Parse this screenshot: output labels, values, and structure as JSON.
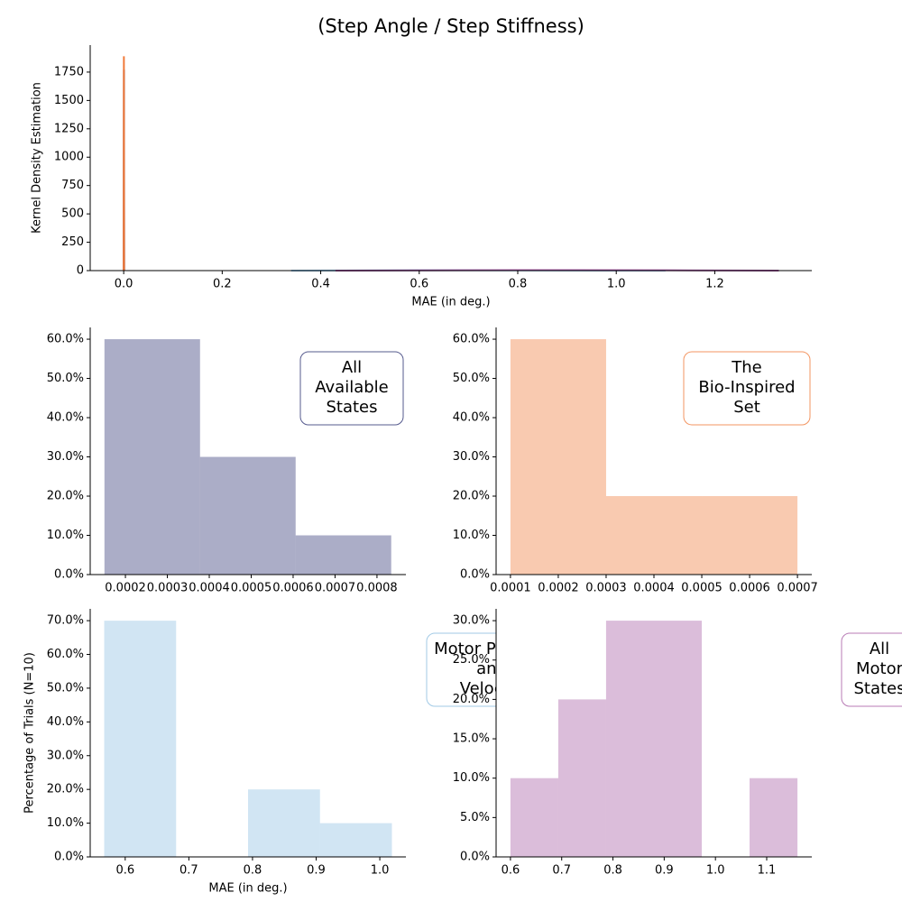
{
  "title": "(Step Angle / Step Stiffness)",
  "chart_data": [
    {
      "type": "line",
      "xlabel": "MAE (in deg.)",
      "ylabel": "Kernel Density Estimation",
      "xlim": [
        -0.068,
        1.397
      ],
      "ylim": [
        0,
        1988
      ],
      "xticks": [
        {
          "value": 0,
          "label": "0.0"
        },
        {
          "value": 0.2,
          "label": "0.2"
        },
        {
          "value": 0.4,
          "label": "0.4"
        },
        {
          "value": 0.6,
          "label": "0.6"
        },
        {
          "value": 0.8,
          "label": "0.8"
        },
        {
          "value": 1.0,
          "label": "1.0"
        },
        {
          "value": 1.2,
          "label": "1.2"
        }
      ],
      "yticks": [
        0,
        250,
        500,
        750,
        1000,
        1250,
        1500,
        1750
      ],
      "series": [
        {
          "color": "#2c3272",
          "x": [
            0,
            0.0005,
            0.001
          ],
          "values": [
            0,
            1770,
            0
          ]
        },
        {
          "color": "#f07a3a",
          "x": [
            0,
            0.0004,
            0.0008
          ],
          "values": [
            0,
            1890,
            0
          ]
        },
        {
          "color": "#8bbde0",
          "x": [
            0.34,
            0.6,
            0.8,
            1.1
          ],
          "values": [
            0,
            3,
            2,
            0
          ]
        },
        {
          "color": "#a65aa3",
          "x": [
            0.43,
            0.8,
            1.1,
            1.33
          ],
          "values": [
            0,
            4,
            3,
            0
          ]
        }
      ]
    },
    {
      "type": "histogram",
      "color": "#2c3272",
      "annotation": [
        "All",
        "Available",
        "States"
      ],
      "xlim": [
        0.000116,
        0.000869
      ],
      "ylim": [
        0,
        63
      ],
      "xticks": [
        0.0002,
        0.0003,
        0.0004,
        0.0005,
        0.0006,
        0.0007,
        0.0008
      ],
      "yticks": [
        {
          "value": 0,
          "label": "0.0%"
        },
        {
          "value": 10,
          "label": "10.0%"
        },
        {
          "value": 20,
          "label": "20.0%"
        },
        {
          "value": 30,
          "label": "30.0%"
        },
        {
          "value": 40,
          "label": "40.0%"
        },
        {
          "value": 50,
          "label": "50.0%"
        },
        {
          "value": 60,
          "label": "60.0%"
        }
      ],
      "bins": [
        0.00015,
        0.000378,
        0.000606,
        0.000834
      ],
      "values": [
        60,
        30,
        10
      ]
    },
    {
      "type": "histogram",
      "color": "#f07a3a",
      "annotation": [
        "The",
        "Bio-Inspired",
        "Set"
      ],
      "xlim": [
        7e-05,
        0.00073
      ],
      "ylim": [
        0,
        63
      ],
      "xticks": [
        0.0001,
        0.0002,
        0.0003,
        0.0004,
        0.0005,
        0.0006,
        0.0007
      ],
      "yticks": [
        {
          "value": 0,
          "label": "0.0%"
        },
        {
          "value": 10,
          "label": "10.0%"
        },
        {
          "value": 20,
          "label": "20.0%"
        },
        {
          "value": 30,
          "label": "30.0%"
        },
        {
          "value": 40,
          "label": "40.0%"
        },
        {
          "value": 50,
          "label": "50.0%"
        },
        {
          "value": 60,
          "label": "60.0%"
        }
      ],
      "bins": [
        0.0001,
        0.0003,
        0.0005,
        0.0007
      ],
      "values": [
        60,
        20,
        20
      ]
    },
    {
      "type": "histogram",
      "color": "#8bbde0",
      "annotation": [
        "Motor Position",
        "and",
        "Velocity"
      ],
      "xlabel": "MAE (in deg.)",
      "ylabel": "Percentage of Trials (N=10)",
      "xlim": [
        0.545,
        1.041
      ],
      "ylim": [
        0,
        73.5
      ],
      "xticks": [
        0.6,
        0.7,
        0.8,
        0.9,
        {
          "value": 1.0,
          "label": "1.0"
        }
      ],
      "yticks": [
        {
          "value": 0,
          "label": "0.0%"
        },
        {
          "value": 10,
          "label": "10.0%"
        },
        {
          "value": 20,
          "label": "20.0%"
        },
        {
          "value": 30,
          "label": "30.0%"
        },
        {
          "value": 40,
          "label": "40.0%"
        },
        {
          "value": 50,
          "label": "50.0%"
        },
        {
          "value": 60,
          "label": "60.0%"
        },
        {
          "value": 70,
          "label": "70.0%"
        }
      ],
      "bins": [
        0.567,
        0.68,
        0.793,
        0.906,
        1.019
      ],
      "values": [
        70,
        0,
        20,
        10
      ]
    },
    {
      "type": "histogram",
      "color": "#a65aa3",
      "annotation": [
        "All",
        "Motor",
        "States"
      ],
      "xlim": [
        0.572,
        1.188
      ],
      "ylim": [
        0,
        31.5
      ],
      "xticks": [
        0.6,
        0.7,
        0.8,
        0.9,
        {
          "value": 1.0,
          "label": "1.0"
        },
        1.1
      ],
      "yticks": [
        {
          "value": 0,
          "label": "0.0%"
        },
        {
          "value": 5,
          "label": "5.0%"
        },
        {
          "value": 10,
          "label": "10.0%"
        },
        {
          "value": 15,
          "label": "15.0%"
        },
        {
          "value": 20,
          "label": "20.0%"
        },
        {
          "value": 25,
          "label": "25.0%"
        },
        {
          "value": 30,
          "label": "30.0%"
        }
      ],
      "bins": [
        0.6,
        0.6933,
        0.7866,
        0.88,
        0.9733,
        1.0666,
        1.16
      ],
      "values": [
        10,
        20,
        30,
        30,
        0,
        10
      ]
    }
  ]
}
